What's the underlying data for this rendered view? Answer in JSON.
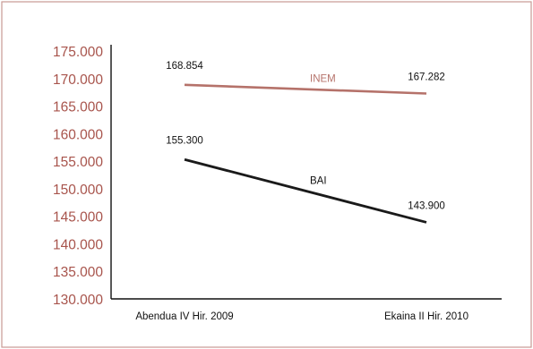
{
  "chart_data": {
    "type": "line",
    "categories": [
      "Abendua IV Hir. 2009",
      "Ekaina II Hir. 2010"
    ],
    "series": [
      {
        "name": "INEM",
        "values": [
          168854,
          167282
        ],
        "value_labels": [
          "168.854",
          "167.282"
        ],
        "color": "#b5726a"
      },
      {
        "name": "BAI",
        "values": [
          155300,
          143900
        ],
        "value_labels": [
          "155.300",
          "143.900"
        ],
        "color": "#1a1a1a"
      }
    ],
    "yticks": [
      "130.000",
      "135.000",
      "140.000",
      "145.000",
      "150.000",
      "155.000",
      "160.000",
      "165.000",
      "170.000",
      "175.000"
    ],
    "ylim": [
      130000,
      175000
    ],
    "title": "",
    "xlabel": "",
    "ylabel": "",
    "grid": false,
    "frame_color": "#c99a94",
    "axis_label_color": "#a8544c"
  }
}
